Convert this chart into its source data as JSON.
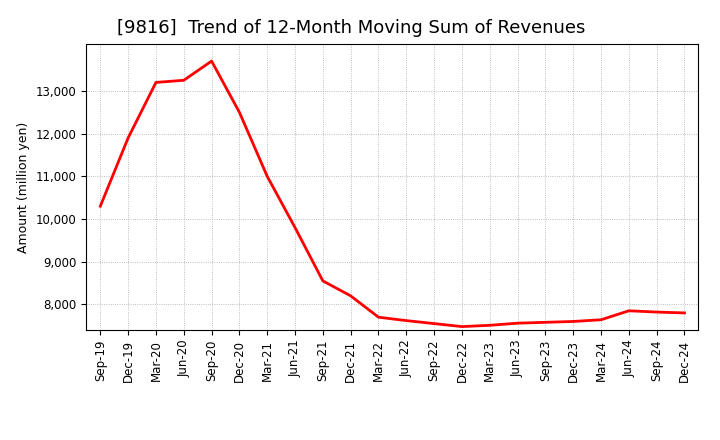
{
  "title": "[9816]  Trend of 12-Month Moving Sum of Revenues",
  "ylabel": "Amount (million yen)",
  "line_color": "#ff0000",
  "background_color": "#ffffff",
  "plot_bg_color": "#ffffff",
  "grid_color": "#aaaaaa",
  "x_labels": [
    "Sep-19",
    "Dec-19",
    "Mar-20",
    "Jun-20",
    "Sep-20",
    "Dec-20",
    "Mar-21",
    "Jun-21",
    "Sep-21",
    "Dec-21",
    "Mar-22",
    "Jun-22",
    "Sep-22",
    "Dec-22",
    "Mar-23",
    "Jun-23",
    "Sep-23",
    "Dec-23",
    "Mar-24",
    "Jun-24",
    "Sep-24",
    "Dec-24"
  ],
  "values": [
    10300,
    11900,
    13200,
    13250,
    13700,
    12500,
    11000,
    9800,
    8550,
    8200,
    7700,
    7620,
    7550,
    7480,
    7510,
    7560,
    7580,
    7600,
    7640,
    7850,
    7820,
    7800
  ],
  "ylim_min": 7400,
  "ylim_max": 14100,
  "yticks": [
    8000,
    9000,
    10000,
    11000,
    12000,
    13000
  ],
  "title_fontsize": 13,
  "axis_fontsize": 9,
  "tick_fontsize": 8.5,
  "line_width": 2.0
}
